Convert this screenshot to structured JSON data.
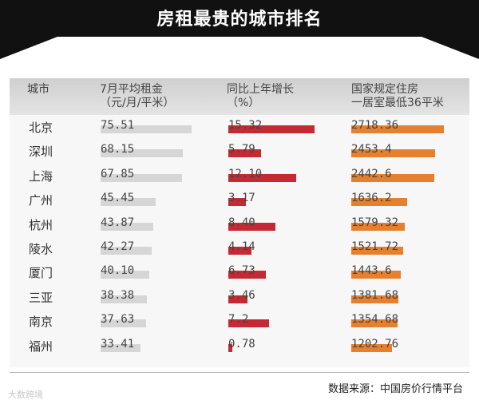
{
  "title": "房租最贵的城市排名",
  "source": "数据来源：中国房价行情平台",
  "watermark": "大数跨境",
  "colors": {
    "rent": "#d6d6d6",
    "growth": "#c42a33",
    "price": "#e5802e"
  },
  "chart_data": {
    "type": "table",
    "headers": {
      "city": "城市",
      "rent": [
        "7月平均租金",
        "（元/月/平米）"
      ],
      "growth": [
        "同比上年增长",
        "（%）"
      ],
      "price": [
        "国家规定住房",
        "一居室最低36平米"
      ]
    },
    "rows": [
      {
        "city": "北京",
        "rent": "75.51",
        "growth": "15.32",
        "price": "2718.36"
      },
      {
        "city": "深圳",
        "rent": "68.15",
        "growth": "5.79",
        "price": "2453.4"
      },
      {
        "city": "上海",
        "rent": "67.85",
        "growth": "12.10",
        "price": "2442.6"
      },
      {
        "city": "广州",
        "rent": "45.45",
        "growth": "3.17",
        "price": "1636.2"
      },
      {
        "city": "杭州",
        "rent": "43.87",
        "growth": "8.40",
        "price": "1579.32"
      },
      {
        "city": "陵水",
        "rent": "42.27",
        "growth": "4.14",
        "price": "1521.72"
      },
      {
        "city": "厦门",
        "rent": "40.10",
        "growth": "6.73",
        "price": "1443.6"
      },
      {
        "city": "三亚",
        "rent": "38.38",
        "growth": "3.46",
        "price": "1381.68"
      },
      {
        "city": "南京",
        "rent": "37.63",
        "growth": "7.2",
        "price": "1354.68"
      },
      {
        "city": "福州",
        "rent": "33.41",
        "growth": "0.78",
        "price": "1202.76"
      }
    ]
  }
}
